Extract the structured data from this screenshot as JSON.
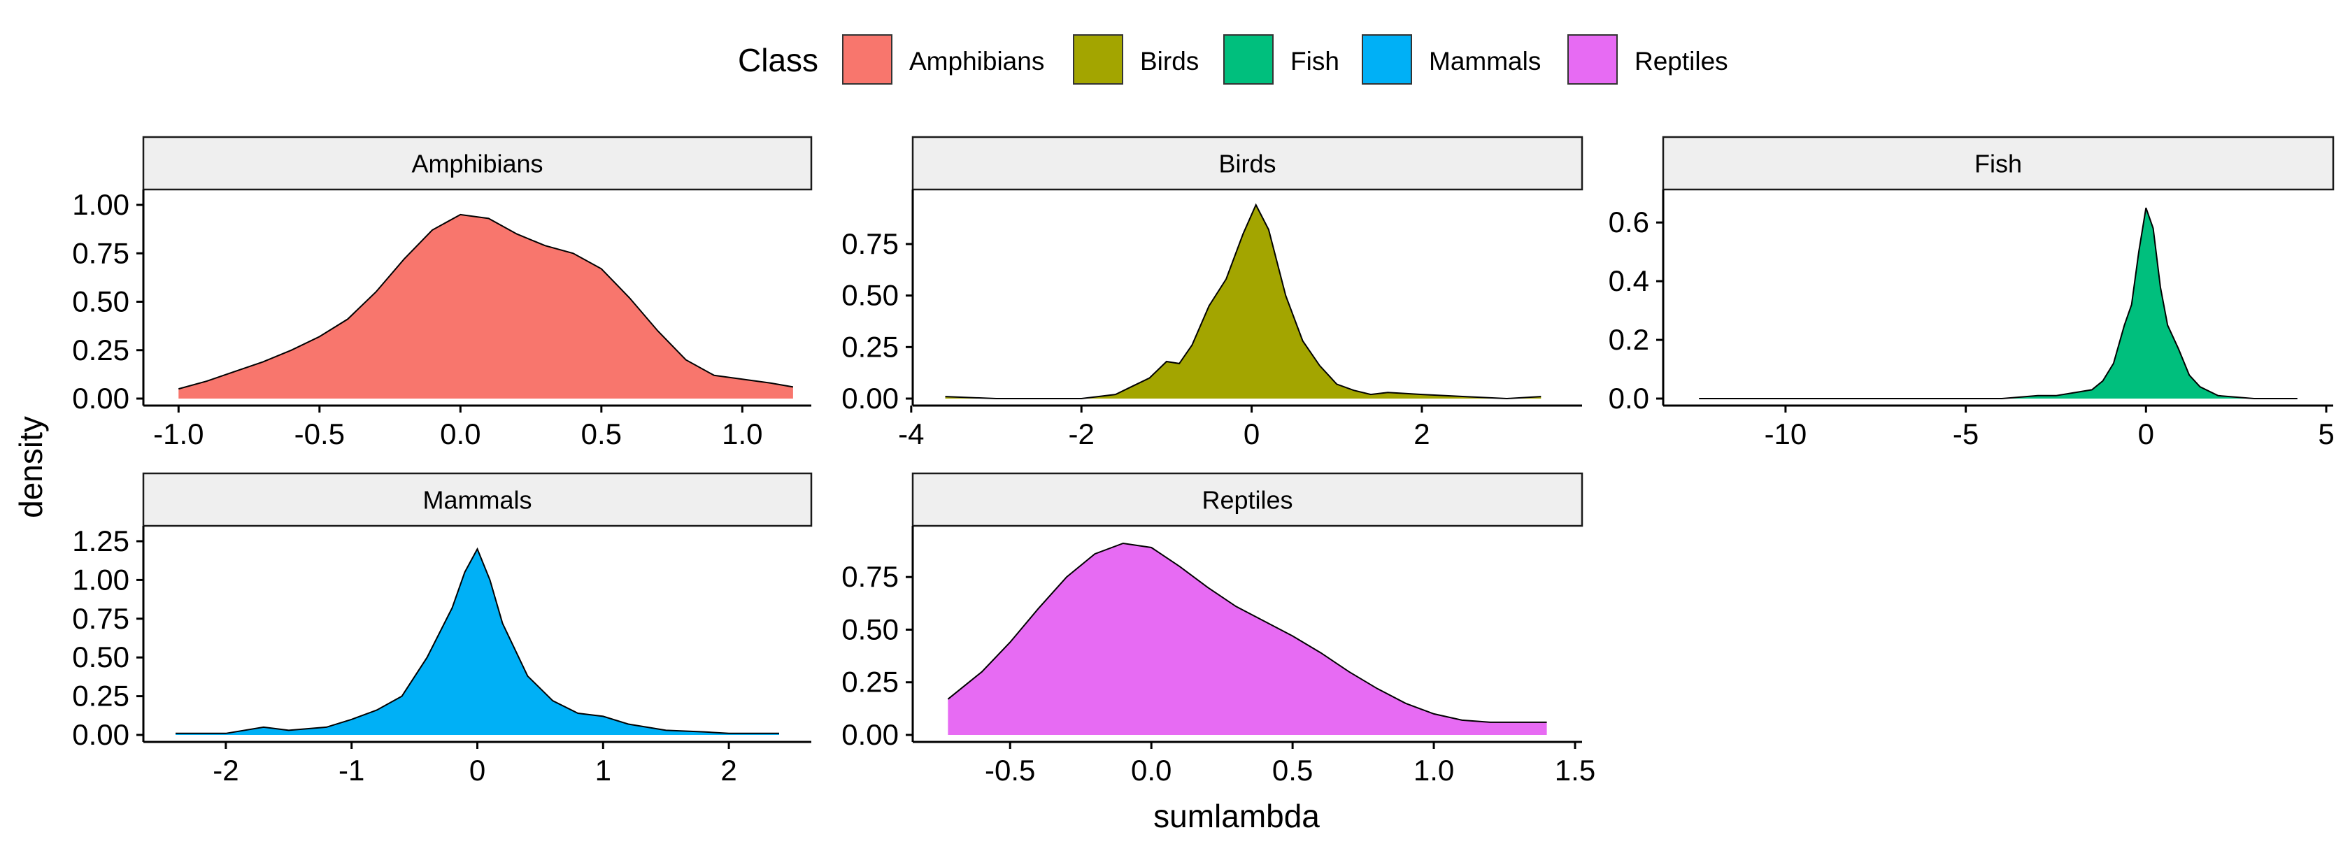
{
  "legend": {
    "title": "Class",
    "entries": [
      {
        "label": "Amphibians",
        "color": "#F8766D"
      },
      {
        "label": "Birds",
        "color": "#A3A500"
      },
      {
        "label": "Fish",
        "color": "#00BF7D"
      },
      {
        "label": "Mammals",
        "color": "#00B0F6"
      },
      {
        "label": "Reptiles",
        "color": "#E76BF3"
      }
    ]
  },
  "axes": {
    "xlabel": "sumlambda",
    "ylabel": "density"
  },
  "chart_data": [
    {
      "type": "area",
      "panel": "Amphibians",
      "color": "#F8766D",
      "xlim": [
        -1.1,
        1.22
      ],
      "ylim": [
        0,
        1.0
      ],
      "xticks": [
        -1.0,
        -0.5,
        0.0,
        0.5,
        1.0
      ],
      "xtick_labels": [
        "-1.0",
        "-0.5",
        "0.0",
        "0.5",
        "1.0"
      ],
      "yticks": [
        0.0,
        0.25,
        0.5,
        0.75,
        1.0
      ],
      "ytick_labels": [
        "0.00",
        "0.25",
        "0.50",
        "0.75",
        "1.00"
      ],
      "x": [
        -1.0,
        -0.9,
        -0.8,
        -0.7,
        -0.6,
        -0.5,
        -0.4,
        -0.3,
        -0.2,
        -0.1,
        0.0,
        0.1,
        0.2,
        0.3,
        0.4,
        0.5,
        0.6,
        0.7,
        0.8,
        0.9,
        1.0,
        1.1,
        1.18
      ],
      "y": [
        0.05,
        0.09,
        0.14,
        0.19,
        0.25,
        0.32,
        0.41,
        0.55,
        0.72,
        0.87,
        0.95,
        0.93,
        0.85,
        0.79,
        0.75,
        0.67,
        0.52,
        0.35,
        0.2,
        0.12,
        0.1,
        0.08,
        0.06
      ]
    },
    {
      "type": "area",
      "panel": "Birds",
      "color": "#A3A500",
      "xlim": [
        -3.9,
        3.8
      ],
      "ylim": [
        0,
        0.94
      ],
      "xticks": [
        -4,
        -2,
        0,
        2
      ],
      "xtick_labels": [
        "-4",
        "-2",
        "0",
        "2"
      ],
      "yticks": [
        0.0,
        0.25,
        0.5,
        0.75
      ],
      "ytick_labels": [
        "0.00",
        "0.25",
        "0.50",
        "0.75"
      ],
      "x": [
        -3.6,
        -3.0,
        -2.0,
        -1.6,
        -1.4,
        -1.2,
        -1.0,
        -0.85,
        -0.7,
        -0.5,
        -0.3,
        -0.1,
        0.05,
        0.2,
        0.4,
        0.6,
        0.8,
        1.0,
        1.2,
        1.4,
        1.6,
        2.0,
        2.5,
        3.0,
        3.4
      ],
      "y": [
        0.01,
        0.0,
        0.0,
        0.02,
        0.06,
        0.1,
        0.18,
        0.17,
        0.26,
        0.45,
        0.58,
        0.8,
        0.94,
        0.82,
        0.5,
        0.28,
        0.16,
        0.07,
        0.04,
        0.02,
        0.03,
        0.02,
        0.01,
        0.0,
        0.01
      ]
    },
    {
      "type": "area",
      "panel": "Fish",
      "color": "#00BF7D",
      "xlim": [
        -13.2,
        5.0
      ],
      "ylim": [
        0,
        0.66
      ],
      "xticks": [
        -10,
        -5,
        0,
        5
      ],
      "xtick_labels": [
        "-10",
        "-5",
        "0",
        "5"
      ],
      "yticks": [
        0.0,
        0.2,
        0.4,
        0.6
      ],
      "ytick_labels": [
        "0.0",
        "0.2",
        "0.4",
        "0.6"
      ],
      "x": [
        -12.4,
        -8.0,
        -4.0,
        -3.0,
        -2.5,
        -2.0,
        -1.5,
        -1.2,
        -0.9,
        -0.6,
        -0.4,
        -0.2,
        0.0,
        0.2,
        0.4,
        0.6,
        0.9,
        1.2,
        1.5,
        2.0,
        3.0,
        4.2
      ],
      "y": [
        0.0,
        0.0,
        0.0,
        0.01,
        0.01,
        0.02,
        0.03,
        0.06,
        0.12,
        0.25,
        0.32,
        0.5,
        0.65,
        0.58,
        0.38,
        0.25,
        0.17,
        0.08,
        0.04,
        0.01,
        0.0,
        0.0
      ]
    },
    {
      "type": "area",
      "panel": "Mammals",
      "color": "#00B0F6",
      "xlim": [
        -2.6,
        2.6
      ],
      "ylim": [
        0,
        1.25
      ],
      "xticks": [
        -2,
        -1,
        0,
        1,
        2
      ],
      "xtick_labels": [
        "-2",
        "-1",
        "0",
        "1",
        "2"
      ],
      "yticks": [
        0.0,
        0.25,
        0.5,
        0.75,
        1.0,
        1.25
      ],
      "ytick_labels": [
        "0.00",
        "0.25",
        "0.50",
        "0.75",
        "1.00",
        "1.25"
      ],
      "x": [
        -2.4,
        -2.0,
        -1.7,
        -1.5,
        -1.2,
        -1.0,
        -0.8,
        -0.6,
        -0.4,
        -0.2,
        -0.1,
        0.0,
        0.1,
        0.2,
        0.4,
        0.6,
        0.8,
        1.0,
        1.2,
        1.5,
        1.8,
        2.0,
        2.4
      ],
      "y": [
        0.01,
        0.01,
        0.05,
        0.03,
        0.05,
        0.1,
        0.16,
        0.25,
        0.5,
        0.82,
        1.05,
        1.2,
        1.0,
        0.72,
        0.38,
        0.22,
        0.14,
        0.12,
        0.07,
        0.03,
        0.02,
        0.01,
        0.01
      ]
    },
    {
      "type": "area",
      "panel": "Reptiles",
      "color": "#E76BF3",
      "xlim": [
        -0.82,
        1.5
      ],
      "ylim": [
        0,
        0.92
      ],
      "xticks": [
        -0.5,
        0.0,
        0.5,
        1.0,
        1.5
      ],
      "xtick_labels": [
        "-0.5",
        "0.0",
        "0.5",
        "1.0",
        "1.5"
      ],
      "yticks": [
        0.0,
        0.25,
        0.5,
        0.75
      ],
      "ytick_labels": [
        "0.00",
        "0.25",
        "0.50",
        "0.75"
      ],
      "x": [
        -0.72,
        -0.6,
        -0.5,
        -0.4,
        -0.3,
        -0.2,
        -0.1,
        0.0,
        0.1,
        0.2,
        0.3,
        0.4,
        0.5,
        0.6,
        0.7,
        0.8,
        0.9,
        1.0,
        1.1,
        1.2,
        1.3,
        1.4
      ],
      "y": [
        0.17,
        0.3,
        0.44,
        0.6,
        0.75,
        0.86,
        0.91,
        0.89,
        0.8,
        0.7,
        0.61,
        0.54,
        0.47,
        0.39,
        0.3,
        0.22,
        0.15,
        0.1,
        0.07,
        0.06,
        0.06,
        0.06
      ]
    }
  ]
}
